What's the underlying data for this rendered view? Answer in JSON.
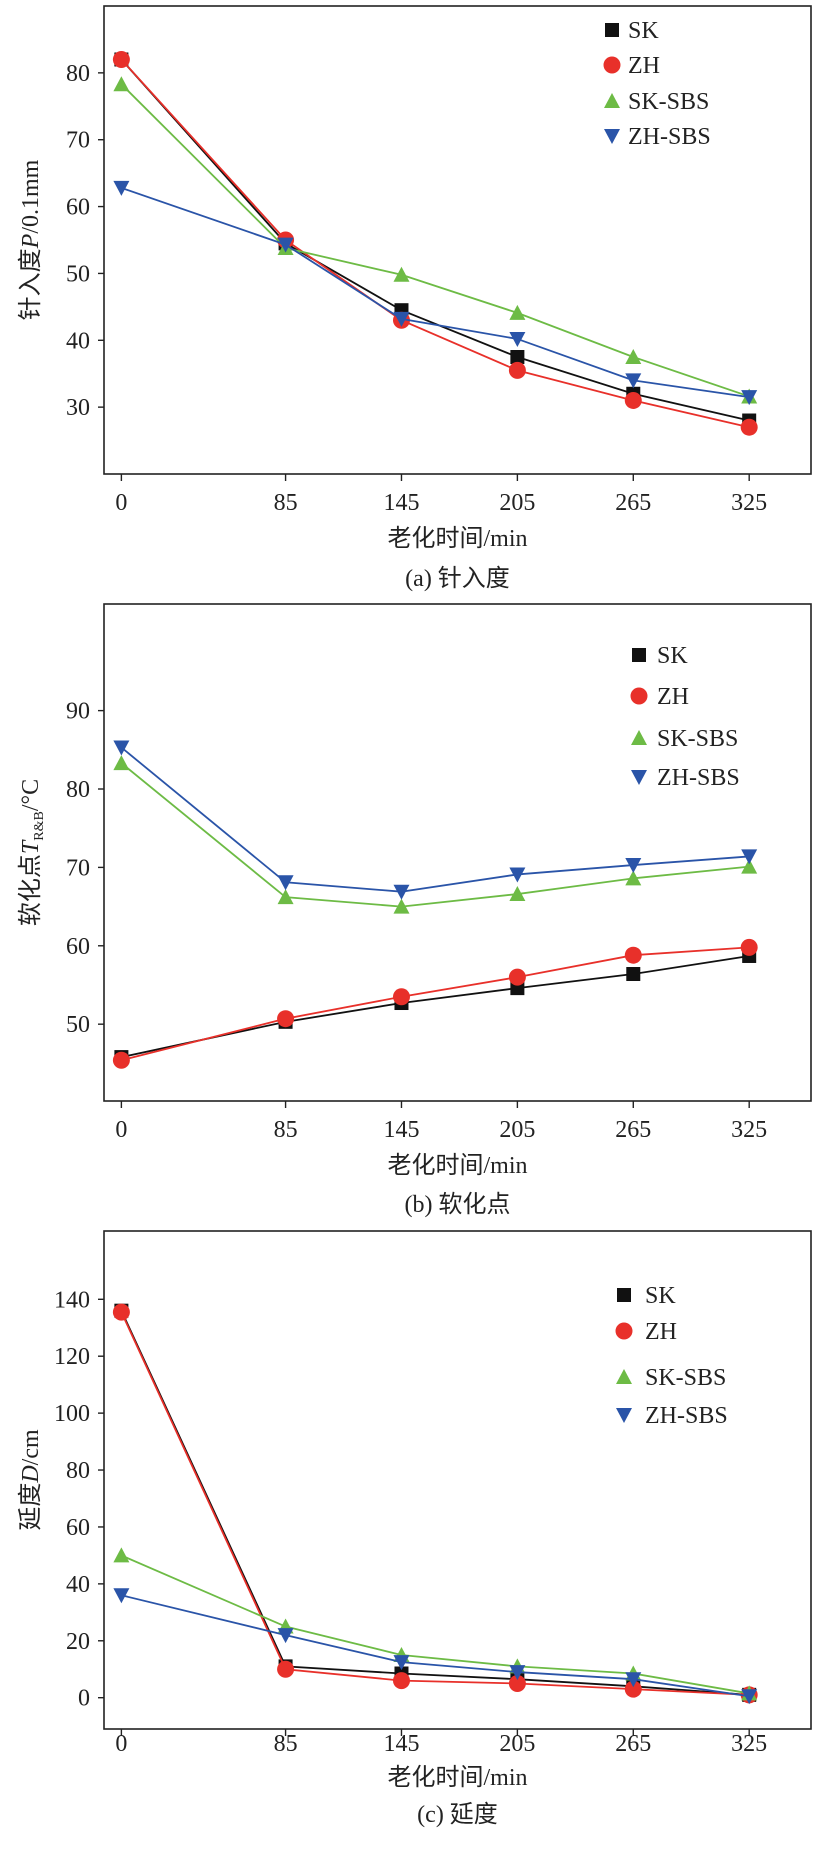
{
  "colors": {
    "SK": "#111111",
    "ZH": "#e8302a",
    "SK-SBS": "#6dbb45",
    "ZH-SBS": "#2a54a8"
  },
  "chart_data": [
    {
      "type": "line",
      "caption": "(a) 针入度",
      "xlabel": "老化时间/min",
      "ylabel": {
        "prefix": "针入度",
        "var": "P",
        "sub": "",
        "suffix": "/0.1mm"
      },
      "x": [
        0,
        85,
        145,
        205,
        265,
        325
      ],
      "x_ticks": [
        "0",
        "85",
        "145",
        "205",
        "265",
        "325"
      ],
      "y_ticks": [
        30,
        40,
        50,
        60,
        70,
        80
      ],
      "ylim": [
        20,
        90
      ],
      "xlim": [
        -9,
        357
      ],
      "grid": false,
      "legend": "top-right",
      "series": [
        {
          "name": "SK",
          "marker": "square",
          "values": [
            82,
            54.5,
            44.5,
            37.5,
            32,
            28
          ]
        },
        {
          "name": "ZH",
          "marker": "circle",
          "values": [
            82,
            55,
            43,
            35.5,
            31,
            27
          ]
        },
        {
          "name": "SK-SBS",
          "marker": "triangle-up",
          "values": [
            78.3,
            53.8,
            49.8,
            44.1,
            37.5,
            31.6
          ]
        },
        {
          "name": "ZH-SBS",
          "marker": "triangle-down",
          "values": [
            62.8,
            54.3,
            43.2,
            40.2,
            34,
            31.5
          ]
        }
      ]
    },
    {
      "type": "line",
      "caption": "(b) 软化点",
      "xlabel": "老化时间/min",
      "ylabel": {
        "prefix": "软化点",
        "var": "T",
        "sub": "R&B",
        "suffix": "/°C"
      },
      "x": [
        0,
        85,
        145,
        205,
        265,
        325
      ],
      "x_ticks": [
        "0",
        "85",
        "145",
        "205",
        "265",
        "325"
      ],
      "y_ticks": [
        50,
        60,
        70,
        80,
        90
      ],
      "ylim": [
        40.2,
        103.6
      ],
      "xlim": [
        -9,
        357
      ],
      "grid": false,
      "legend": "top-right",
      "series": [
        {
          "name": "SK",
          "marker": "square",
          "values": [
            45.8,
            50.3,
            52.7,
            54.6,
            56.4,
            58.7
          ]
        },
        {
          "name": "ZH",
          "marker": "circle",
          "values": [
            45.4,
            50.7,
            53.5,
            56,
            58.8,
            59.8
          ]
        },
        {
          "name": "SK-SBS",
          "marker": "triangle-up",
          "values": [
            83.3,
            66.2,
            65,
            66.6,
            68.6,
            70.1
          ]
        },
        {
          "name": "ZH-SBS",
          "marker": "triangle-down",
          "values": [
            85.3,
            68.1,
            66.9,
            69.1,
            70.3,
            71.4
          ]
        }
      ]
    },
    {
      "type": "line",
      "caption": "(c) 延度",
      "xlabel": "老化时间/min",
      "ylabel": {
        "prefix": "延度",
        "var": "D",
        "sub": "",
        "suffix": "/cm"
      },
      "x": [
        0,
        85,
        145,
        205,
        265,
        325
      ],
      "x_ticks": [
        "0",
        "85",
        "145",
        "205",
        "265",
        "325"
      ],
      "y_ticks": [
        0,
        20,
        40,
        60,
        80,
        100,
        120,
        140
      ],
      "ylim": [
        -11,
        164
      ],
      "xlim": [
        -9,
        357
      ],
      "grid": false,
      "legend": "top-right",
      "series": [
        {
          "name": "SK",
          "marker": "square",
          "values": [
            136,
            11,
            8.5,
            6.5,
            4,
            1
          ]
        },
        {
          "name": "ZH",
          "marker": "circle",
          "values": [
            135.5,
            10,
            6,
            5,
            3,
            1
          ]
        },
        {
          "name": "SK-SBS",
          "marker": "triangle-up",
          "values": [
            50,
            25,
            15,
            11,
            8.5,
            1.5
          ]
        },
        {
          "name": "ZH-SBS",
          "marker": "triangle-down",
          "values": [
            36,
            22,
            12.5,
            9,
            6.5,
            0.5
          ]
        }
      ]
    }
  ]
}
